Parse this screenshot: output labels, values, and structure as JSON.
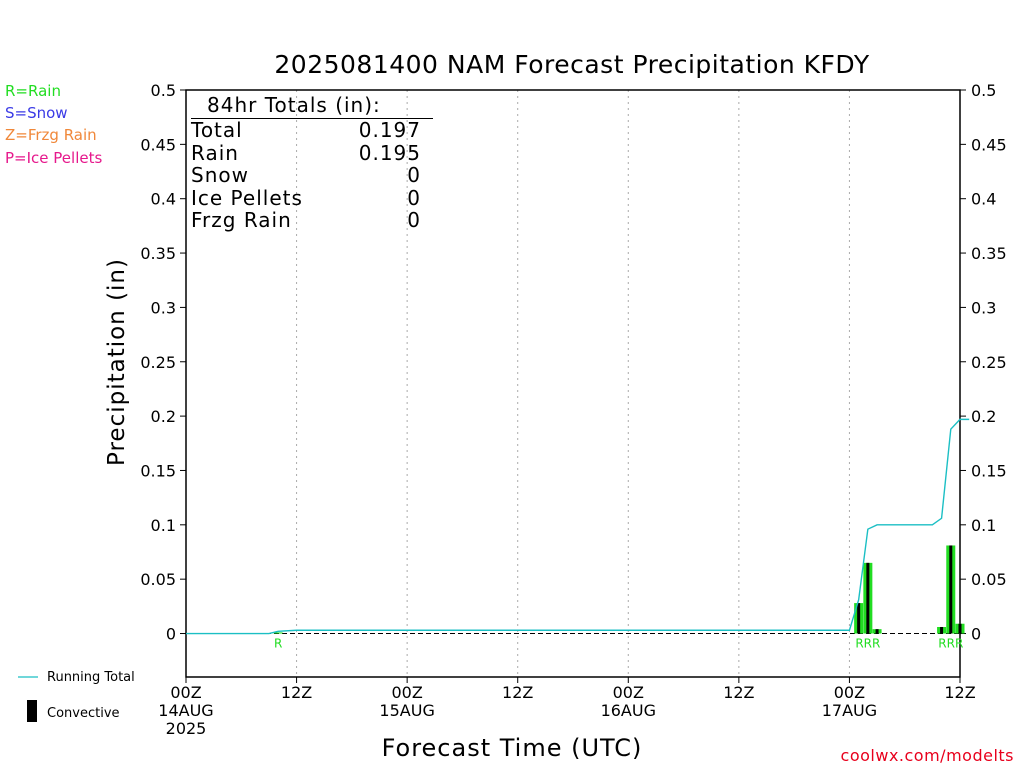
{
  "chart_data": {
    "type": "bar",
    "title": "2025081400 NAM Forecast Precipitation KFDY",
    "xlabel": "Forecast Time (UTC)",
    "ylabel": "Precipitation (in)",
    "ylim": [
      -0.04,
      0.5
    ],
    "yticks": [
      "0.5",
      "0.45",
      "0.4",
      "0.35",
      "0.3",
      "0.25",
      "0.2",
      "0.15",
      "0.1",
      "0.05",
      "0"
    ],
    "ytick_values": [
      0.5,
      0.45,
      0.4,
      0.35,
      0.3,
      0.25,
      0.2,
      0.15,
      0.1,
      0.05,
      0
    ],
    "xlim_hours": [
      0,
      84
    ],
    "xticks": [
      {
        "hour": 0,
        "line1": "00Z",
        "line2": "14AUG",
        "line3": "2025"
      },
      {
        "hour": 12,
        "line1": "12Z",
        "line2": "",
        "line3": ""
      },
      {
        "hour": 24,
        "line1": "00Z",
        "line2": "15AUG",
        "line3": ""
      },
      {
        "hour": 36,
        "line1": "12Z",
        "line2": "",
        "line3": ""
      },
      {
        "hour": 48,
        "line1": "00Z",
        "line2": "16AUG",
        "line3": ""
      },
      {
        "hour": 60,
        "line1": "12Z",
        "line2": "",
        "line3": ""
      },
      {
        "hour": 72,
        "line1": "00Z",
        "line2": "17AUG",
        "line3": ""
      },
      {
        "hour": 84,
        "line1": "12Z",
        "line2": "",
        "line3": ""
      }
    ],
    "grid": "vertical dotted",
    "series": [
      {
        "name": "Rain",
        "kind": "bar",
        "color": "#22dd22",
        "hours": [
          10,
          73,
          74,
          75,
          82,
          83,
          84
        ],
        "values": [
          0.001,
          0.028,
          0.065,
          0.004,
          0.006,
          0.081,
          0.009
        ]
      },
      {
        "name": "Convective",
        "kind": "bar",
        "color": "#000000",
        "hours": [
          73,
          74,
          75,
          82,
          83,
          84
        ],
        "values": [
          0.028,
          0.065,
          0.004,
          0.006,
          0.081,
          0.009
        ]
      },
      {
        "name": "Running Total",
        "kind": "line",
        "color": "#1bbfc4",
        "points": [
          [
            0,
            0
          ],
          [
            9,
            0
          ],
          [
            10,
            0.002
          ],
          [
            12,
            0.003
          ],
          [
            72,
            0.003
          ],
          [
            73,
            0.031
          ],
          [
            74,
            0.096
          ],
          [
            75,
            0.1
          ],
          [
            81,
            0.1
          ],
          [
            82,
            0.106
          ],
          [
            83,
            0.188
          ],
          [
            84,
            0.197
          ],
          [
            85,
            0.197
          ]
        ]
      }
    ],
    "ptype_labels": [
      {
        "hour": 10,
        "text": "R"
      },
      {
        "hour": 74,
        "text": "RRR"
      },
      {
        "hour": 83,
        "text": "RRR"
      }
    ]
  },
  "totals": {
    "heading": "84hr Totals (in):",
    "rows": [
      {
        "label": "Total",
        "value": "0.197"
      },
      {
        "label": "Rain",
        "value": "0.195"
      },
      {
        "label": "Snow",
        "value": "0"
      },
      {
        "label": "Ice Pellets",
        "value": "0"
      },
      {
        "label": "Frzg Rain",
        "value": "0"
      }
    ]
  },
  "precip_type_legend": [
    {
      "text": "R=Rain",
      "color": "#22dd22"
    },
    {
      "text": "S=Snow",
      "color": "#3a3ae6"
    },
    {
      "text": "Z=Frzg Rain",
      "color": "#f0883a"
    },
    {
      "text": "P=Ice Pellets",
      "color": "#e6198c"
    }
  ],
  "legend": {
    "running_total": "Running Total",
    "convective": "Convective"
  },
  "credit": "coolwx.com/modelts",
  "colors": {
    "rain": "#22dd22",
    "running_total": "#1bbfc4",
    "convective": "#000000",
    "credit": "#e8001c"
  }
}
